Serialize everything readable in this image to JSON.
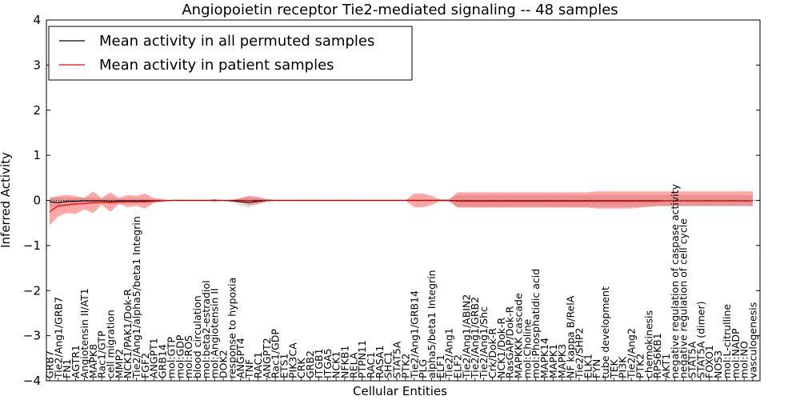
{
  "chart_data": {
    "type": "line",
    "title": "Angiopoietin receptor Tie2-mediated signaling -- 48 samples",
    "xlabel": "Cellular Entities",
    "ylabel": "Inferred Activity",
    "ylim": [
      -4,
      4
    ],
    "yticks": [
      -4,
      -3,
      -2,
      -1,
      0,
      1,
      2,
      3,
      4
    ],
    "ytick_labels": [
      "−4",
      "−3",
      "−2",
      "−1",
      "0",
      "1",
      "2",
      "3",
      "4"
    ],
    "legend_position": "top-left",
    "categories": [
      "GRB7",
      "Tie2/Ang1/GRB7",
      "FN1",
      "AGTR1",
      "Angiotensin II/AT1",
      "MAPK8",
      "Rac1/GTP",
      "cell migration",
      "MMP2",
      "NCK1/PAK1/Dok-R",
      "Tie2/Ang1/alpha5/beta1 Integrin",
      "FGF2",
      "ANGPT1",
      "GRB14",
      "mol:GTP",
      "mol:GDP",
      "mol:ROS",
      "blood circulation",
      "mol:beta2-estradiol",
      "mol:Angiotensin II",
      "DOK2",
      "response to hypoxia",
      "ANGPT4",
      "TNF",
      "RAC1",
      "ANGPT2",
      "Rac1/GDP",
      "ETS1",
      "PIK3CA",
      "CRK",
      "GRB2",
      "ITGB1",
      "ITGA5",
      "NCK1",
      "NFKB1",
      "RELA",
      "PTPN11",
      "RAC1",
      "RASA1",
      "SHC1",
      "STAT5A",
      "PTK2",
      "Tie2/Ang1/GRB14",
      "PLG",
      "alpha5/beta1 Integrin",
      "ELF1",
      "Tie2/Ang1",
      "ELF2",
      "Tie2/Ang1/ABIN2",
      "Tie2/Ang1/GRB2",
      "Tie2/Ang1/Shc",
      "Crk/Dok-R",
      "NCK1/Dok-R",
      "RasGAP/Dok-R",
      "MAPKKK cascade",
      "mol:Choline",
      "mol:Phosphatidic acid",
      "MAPK14",
      "MAPK1",
      "MAPK3",
      "NF kappa B/RelA",
      "Tie2/SHP2",
      "ELK1",
      "FYN",
      "tube development",
      "TEK",
      "PI3K",
      "Tie2/Ang2",
      "PTK2",
      "chemokinesis",
      "RPS6KB1",
      "AKT1",
      "negative regulation of caspase activity",
      "negative regulation of cell cycle",
      "STAT5A",
      "STAT5A (dimer)",
      "FOXO1",
      "NOS3",
      "mol:L-citrulline",
      "mol:NADP",
      "mol:NO",
      "vasculogenesis"
    ],
    "series": [
      {
        "name": "Mean activity in all permuted samples",
        "color": "#000000",
        "values": [
          -0.03,
          -0.05,
          -0.02,
          -0.02,
          -0.01,
          -0.01,
          -0.01,
          -0.02,
          -0.01,
          -0.01,
          -0.01,
          -0.01,
          -0.01,
          -0.01,
          0.0,
          0.0,
          0.0,
          0.0,
          0.0,
          0.0,
          0.0,
          -0.01,
          -0.03,
          -0.04,
          -0.02,
          0.0,
          0.0,
          0.0,
          0.0,
          0.0,
          0.0,
          0.0,
          0.0,
          0.0,
          0.0,
          0.0,
          0.0,
          0.0,
          0.0,
          0.0,
          0.0,
          0.0,
          0.0,
          0.0,
          0.0,
          0.0,
          0.0,
          -0.01,
          -0.01,
          -0.01,
          -0.01,
          -0.01,
          -0.01,
          -0.01,
          -0.01,
          -0.01,
          -0.01,
          -0.01,
          -0.01,
          -0.01,
          -0.01,
          -0.01,
          -0.01,
          -0.01,
          -0.01,
          -0.01,
          -0.01,
          -0.01,
          -0.01,
          -0.01,
          -0.01,
          -0.01,
          -0.01,
          -0.01,
          -0.01,
          -0.01,
          -0.01,
          -0.01,
          -0.01,
          -0.01,
          -0.01,
          -0.01
        ],
        "lower": [
          -0.15,
          -0.15,
          -0.12,
          -0.1,
          -0.08,
          -0.08,
          -0.05,
          -0.08,
          -0.05,
          -0.05,
          -0.06,
          -0.05,
          -0.04,
          -0.02,
          0.0,
          0.0,
          0.0,
          0.0,
          0.0,
          0.0,
          0.0,
          -0.04,
          -0.12,
          -0.16,
          -0.08,
          -0.02,
          -0.01,
          -0.01,
          -0.01,
          -0.01,
          -0.01,
          -0.01,
          -0.01,
          -0.01,
          -0.01,
          -0.01,
          -0.01,
          -0.01,
          -0.01,
          -0.01,
          -0.01,
          -0.01,
          -0.01,
          -0.01,
          -0.01,
          -0.01,
          -0.02,
          -0.14,
          -0.14,
          -0.14,
          -0.14,
          -0.14,
          -0.14,
          -0.14,
          -0.14,
          -0.14,
          -0.14,
          -0.14,
          -0.14,
          -0.14,
          -0.14,
          -0.14,
          -0.14,
          -0.14,
          -0.14,
          -0.14,
          -0.14,
          -0.14,
          -0.14,
          -0.14,
          -0.14,
          -0.14,
          -0.14,
          -0.14,
          -0.14,
          -0.14,
          -0.14,
          -0.14,
          -0.14,
          -0.14,
          -0.14,
          -0.14
        ],
        "upper": [
          0.08,
          0.06,
          0.06,
          0.06,
          0.06,
          0.06,
          0.04,
          0.06,
          0.04,
          0.04,
          0.04,
          0.04,
          0.03,
          0.02,
          0.0,
          0.0,
          0.0,
          0.0,
          0.0,
          0.0,
          0.0,
          0.03,
          0.06,
          0.08,
          0.05,
          0.02,
          0.01,
          0.01,
          0.01,
          0.01,
          0.01,
          0.01,
          0.01,
          0.01,
          0.01,
          0.01,
          0.01,
          0.01,
          0.01,
          0.01,
          0.01,
          0.01,
          0.01,
          0.01,
          0.01,
          0.01,
          0.02,
          0.12,
          0.12,
          0.12,
          0.12,
          0.12,
          0.12,
          0.12,
          0.12,
          0.12,
          0.12,
          0.12,
          0.12,
          0.12,
          0.12,
          0.12,
          0.12,
          0.12,
          0.12,
          0.12,
          0.12,
          0.12,
          0.12,
          0.12,
          0.12,
          0.12,
          0.12,
          0.12,
          0.12,
          0.12,
          0.12,
          0.12,
          0.12,
          0.12,
          0.12,
          0.12
        ]
      },
      {
        "name": "Mean activity in patient samples",
        "color": "#ff0000",
        "values": [
          -0.25,
          -0.12,
          -0.1,
          -0.08,
          -0.07,
          -0.05,
          -0.05,
          -0.05,
          -0.04,
          -0.03,
          -0.03,
          -0.03,
          -0.02,
          -0.01,
          0.0,
          0.0,
          0.0,
          0.0,
          0.0,
          0.0,
          0.0,
          0.0,
          0.0,
          0.0,
          0.0,
          0.0,
          0.0,
          0.0,
          0.0,
          0.0,
          0.0,
          0.0,
          0.0,
          0.0,
          0.0,
          0.0,
          0.0,
          0.0,
          0.0,
          0.0,
          0.0,
          0.0,
          0.0,
          0.0,
          0.0,
          0.0,
          0.0,
          -0.02,
          -0.02,
          -0.02,
          -0.02,
          -0.02,
          -0.02,
          -0.02,
          -0.02,
          -0.02,
          -0.02,
          -0.02,
          -0.02,
          -0.02,
          -0.02,
          -0.02,
          -0.02,
          -0.02,
          -0.02,
          -0.02,
          -0.02,
          -0.02,
          -0.02,
          -0.02,
          -0.02,
          -0.01,
          -0.01,
          -0.01,
          -0.01,
          -0.01,
          -0.01,
          -0.01,
          -0.01,
          -0.01,
          -0.01,
          -0.01
        ],
        "lower": [
          -0.55,
          -0.35,
          -0.28,
          -0.3,
          -0.2,
          -0.28,
          -0.1,
          -0.25,
          -0.08,
          -0.15,
          -0.12,
          -0.18,
          -0.06,
          -0.03,
          0.0,
          0.0,
          0.0,
          0.0,
          0.0,
          -0.03,
          0.0,
          0.0,
          -0.05,
          -0.1,
          -0.08,
          -0.03,
          -0.01,
          0.0,
          0.0,
          0.0,
          0.0,
          0.0,
          0.0,
          0.0,
          0.0,
          0.0,
          0.0,
          0.0,
          0.0,
          0.0,
          0.0,
          0.0,
          -0.15,
          -0.15,
          -0.1,
          -0.02,
          -0.02,
          -0.16,
          -0.16,
          -0.16,
          -0.16,
          -0.16,
          -0.16,
          -0.16,
          -0.16,
          -0.16,
          -0.16,
          -0.16,
          -0.16,
          -0.16,
          -0.16,
          -0.16,
          -0.16,
          -0.18,
          -0.18,
          -0.18,
          -0.18,
          -0.18,
          -0.16,
          -0.14,
          -0.12,
          -0.12,
          -0.12,
          -0.12,
          -0.12,
          -0.12,
          -0.12,
          -0.12,
          -0.12,
          -0.12,
          -0.12,
          -0.12
        ],
        "upper": [
          0.05,
          0.1,
          0.12,
          0.1,
          0.05,
          0.2,
          0.05,
          0.18,
          0.05,
          0.12,
          0.1,
          0.15,
          0.05,
          0.03,
          0.0,
          0.0,
          0.0,
          0.0,
          0.0,
          0.03,
          0.0,
          0.0,
          0.05,
          0.1,
          0.08,
          0.03,
          0.01,
          0.0,
          0.0,
          0.0,
          0.0,
          0.0,
          0.0,
          0.0,
          0.0,
          0.0,
          0.0,
          0.0,
          0.0,
          0.0,
          0.0,
          0.0,
          0.15,
          0.15,
          0.1,
          0.02,
          0.02,
          0.18,
          0.18,
          0.18,
          0.18,
          0.18,
          0.18,
          0.18,
          0.18,
          0.18,
          0.18,
          0.18,
          0.18,
          0.18,
          0.18,
          0.18,
          0.18,
          0.2,
          0.2,
          0.2,
          0.2,
          0.2,
          0.2,
          0.2,
          0.2,
          0.2,
          0.2,
          0.2,
          0.2,
          0.2,
          0.2,
          0.2,
          0.2,
          0.2,
          0.2,
          0.2
        ]
      }
    ],
    "band_colors": {
      "permuted": "#bbbbbb",
      "patient": "#ff0000"
    }
  }
}
